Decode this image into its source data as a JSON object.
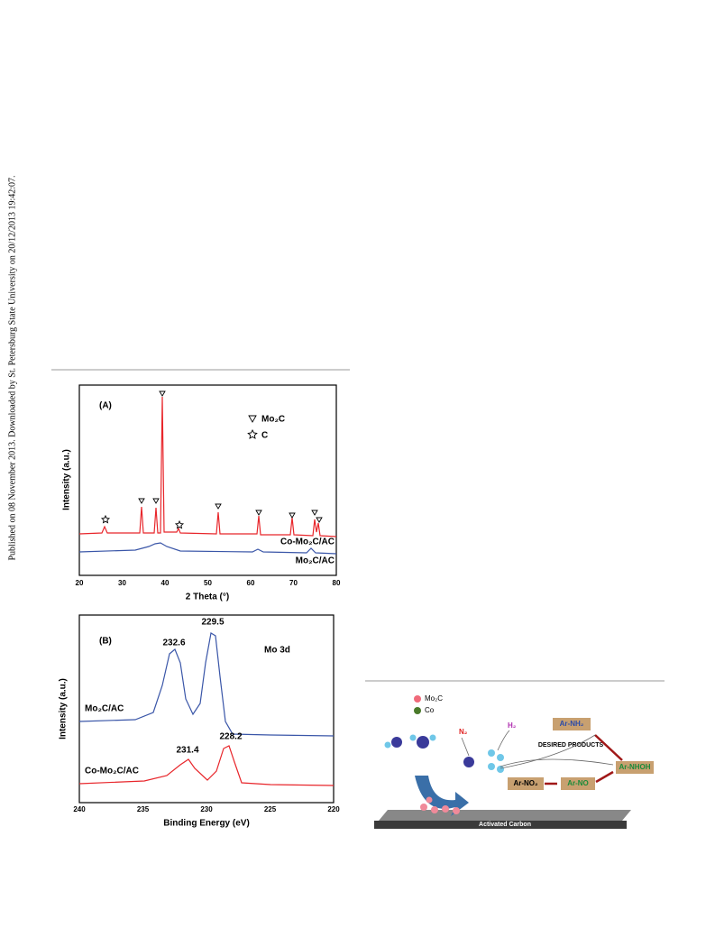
{
  "side_note": "Published on 08 November 2013. Downloaded by St. Petersburg State University on 20/12/2013 19:42:07.",
  "figure_a": {
    "panel": "(A)",
    "legend": [
      "Mo₂C",
      "C"
    ],
    "series_labels": [
      "Co-Mo₂C/AC",
      "Mo₂C/AC"
    ],
    "x_label": "2 Theta (°)",
    "y_label": "Intensity (a.u.)",
    "x_ticks": [
      "20",
      "30",
      "40",
      "50",
      "60",
      "70",
      "80"
    ]
  },
  "figure_b": {
    "panel": "(B)",
    "note": "Mo 3d",
    "series_labels": [
      "Mo₂C/AC",
      "Co-Mo₂C/AC"
    ],
    "peak_labels": [
      "232.6",
      "229.5",
      "231.4",
      "228.2"
    ],
    "x_label": "Binding Energy (eV)",
    "y_label": "Intensity (a.u.)",
    "x_ticks": [
      "240",
      "235",
      "230",
      "225",
      "220"
    ]
  },
  "scheme": {
    "legend": [
      "Mo₂C",
      "Co"
    ],
    "gases": [
      "N₂",
      "H₂"
    ],
    "boxes": [
      "Ar-NH₂",
      "Ar-NHOH",
      "Ar-NO₂",
      "Ar-NO"
    ],
    "caption": "DESIRED PRODUCTS",
    "support": "Activated Carbon"
  }
}
